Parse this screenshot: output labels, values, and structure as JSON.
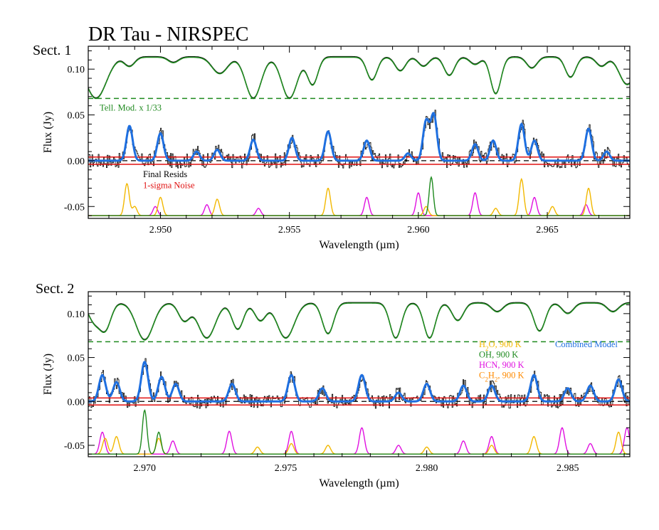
{
  "title": "DR Tau - NIRSPEC",
  "colors": {
    "telluric": "#1f8a1f",
    "combined": "#1e6fe0",
    "resids": "#000000",
    "noise": "#e01010",
    "h2o": "#f2b800",
    "oh": "#1f8a1f",
    "hcn": "#e010e0",
    "c2h2": "#ff8a00"
  },
  "chart_data": [
    {
      "type": "line",
      "panel_label": "Sect. 1",
      "xlabel": "Wavelength (µm)",
      "ylabel": "Flux (Jy)",
      "xlim": [
        2.9472,
        2.9682
      ],
      "ylim": [
        -0.063,
        0.125
      ],
      "xticks": [
        2.95,
        2.955,
        2.96,
        2.965
      ],
      "xtick_labels": [
        "2.950",
        "2.955",
        "2.960",
        "2.965"
      ],
      "yticks": [
        -0.05,
        0.0,
        0.05,
        0.1
      ],
      "ytick_labels": [
        "-0.05",
        "0.00",
        "0.05",
        "0.10"
      ],
      "telluric_level": 0.113,
      "telluric_dips": [
        {
          "x": 2.9475,
          "depth": 0.045,
          "w": 0.0004
        },
        {
          "x": 2.9488,
          "depth": 0.01,
          "w": 0.0002
        },
        {
          "x": 2.9505,
          "depth": 0.006,
          "w": 0.0002
        },
        {
          "x": 2.9523,
          "depth": 0.018,
          "w": 0.0003
        },
        {
          "x": 2.9536,
          "depth": 0.045,
          "w": 0.0003
        },
        {
          "x": 2.955,
          "depth": 0.045,
          "w": 0.0003
        },
        {
          "x": 2.9559,
          "depth": 0.03,
          "w": 0.0002
        },
        {
          "x": 2.9582,
          "depth": 0.025,
          "w": 0.0002
        },
        {
          "x": 2.9593,
          "depth": 0.015,
          "w": 0.0002
        },
        {
          "x": 2.9602,
          "depth": 0.01,
          "w": 0.0002
        },
        {
          "x": 2.9612,
          "depth": 0.02,
          "w": 0.0002
        },
        {
          "x": 2.9622,
          "depth": 0.008,
          "w": 0.0002
        },
        {
          "x": 2.963,
          "depth": 0.04,
          "w": 0.0002
        },
        {
          "x": 2.9644,
          "depth": 0.012,
          "w": 0.0002
        },
        {
          "x": 2.9659,
          "depth": 0.022,
          "w": 0.0002
        },
        {
          "x": 2.9671,
          "depth": 0.01,
          "w": 0.0002
        },
        {
          "x": 2.9681,
          "depth": 0.03,
          "w": 0.0003
        }
      ],
      "telluric_floor": 0.068,
      "telluric_note": "Tell. Mod. x 1/33",
      "combined_peaks": [
        {
          "x": 2.9488,
          "h": 0.038
        },
        {
          "x": 2.95,
          "h": 0.03
        },
        {
          "x": 2.9514,
          "h": 0.01
        },
        {
          "x": 2.9522,
          "h": 0.012
        },
        {
          "x": 2.9536,
          "h": 0.023
        },
        {
          "x": 2.9551,
          "h": 0.025
        },
        {
          "x": 2.9565,
          "h": 0.032
        },
        {
          "x": 2.958,
          "h": 0.022
        },
        {
          "x": 2.9596,
          "h": 0.008
        },
        {
          "x": 2.9603,
          "h": 0.043
        },
        {
          "x": 2.9606,
          "h": 0.05
        },
        {
          "x": 2.9622,
          "h": 0.018
        },
        {
          "x": 2.9629,
          "h": 0.022
        },
        {
          "x": 2.964,
          "h": 0.04
        },
        {
          "x": 2.9645,
          "h": 0.022
        },
        {
          "x": 2.9666,
          "h": 0.035
        },
        {
          "x": 2.9673,
          "h": 0.01
        }
      ],
      "resids_label": "Final Resids",
      "noise_label": "1-sigma Noise",
      "noise_sigma": 0.004,
      "species_base": -0.06,
      "h2o_peaks": [
        2.9487,
        2.949,
        2.95,
        2.9522,
        2.9565,
        2.9603,
        2.964,
        2.9666,
        2.963,
        2.9652
      ],
      "h2o_heights": [
        0.035,
        0.01,
        0.02,
        0.018,
        0.03,
        0.01,
        0.04,
        0.03,
        0.008,
        0.01
      ],
      "oh_peaks": [
        2.9605
      ],
      "oh_heights": [
        0.042
      ],
      "hcn_peaks": [
        2.9498,
        2.9518,
        2.9538,
        2.958,
        2.96,
        2.9622,
        2.9645,
        2.9665
      ],
      "hcn_heights": [
        0.01,
        0.012,
        0.008,
        0.02,
        0.025,
        0.025,
        0.02,
        0.012
      ]
    },
    {
      "type": "line",
      "panel_label": "Sect. 2",
      "xlabel": "Wavelength (µm)",
      "ylabel": "Flux (Jy)",
      "xlim": [
        2.968,
        2.9872
      ],
      "ylim": [
        -0.063,
        0.125
      ],
      "xticks": [
        2.97,
        2.975,
        2.98,
        2.985
      ],
      "xtick_labels": [
        "2.970",
        "2.975",
        "2.980",
        "2.985"
      ],
      "yticks": [
        -0.05,
        0.0,
        0.05,
        0.1
      ],
      "ytick_labels": [
        "-0.05",
        "0.00",
        "0.05",
        "0.10"
      ],
      "telluric_level": 0.112,
      "telluric_dips": [
        {
          "x": 2.9682,
          "depth": 0.02,
          "w": 0.0002
        },
        {
          "x": 2.9686,
          "depth": 0.03,
          "w": 0.0002
        },
        {
          "x": 2.97,
          "depth": 0.042,
          "w": 0.0003
        },
        {
          "x": 2.9714,
          "depth": 0.02,
          "w": 0.0002
        },
        {
          "x": 2.9722,
          "depth": 0.04,
          "w": 0.0003
        },
        {
          "x": 2.9733,
          "depth": 0.03,
          "w": 0.0002
        },
        {
          "x": 2.9741,
          "depth": 0.02,
          "w": 0.0002
        },
        {
          "x": 2.975,
          "depth": 0.04,
          "w": 0.0003
        },
        {
          "x": 2.9765,
          "depth": 0.035,
          "w": 0.0002
        },
        {
          "x": 2.9789,
          "depth": 0.04,
          "w": 0.0002
        },
        {
          "x": 2.9801,
          "depth": 0.04,
          "w": 0.0002
        },
        {
          "x": 2.9811,
          "depth": 0.02,
          "w": 0.0002
        },
        {
          "x": 2.9825,
          "depth": 0.01,
          "w": 0.0002
        },
        {
          "x": 2.984,
          "depth": 0.032,
          "w": 0.0002
        },
        {
          "x": 2.985,
          "depth": 0.012,
          "w": 0.0002
        },
        {
          "x": 2.9866,
          "depth": 0.01,
          "w": 0.0002
        }
      ],
      "telluric_floor": 0.068,
      "combined_peaks": [
        {
          "x": 2.9685,
          "h": 0.03
        },
        {
          "x": 2.969,
          "h": 0.022
        },
        {
          "x": 2.97,
          "h": 0.045
        },
        {
          "x": 2.9706,
          "h": 0.028
        },
        {
          "x": 2.9711,
          "h": 0.02
        },
        {
          "x": 2.9731,
          "h": 0.02
        },
        {
          "x": 2.9752,
          "h": 0.03
        },
        {
          "x": 2.9763,
          "h": 0.015
        },
        {
          "x": 2.9777,
          "h": 0.03
        },
        {
          "x": 2.979,
          "h": 0.01
        },
        {
          "x": 2.98,
          "h": 0.02
        },
        {
          "x": 2.9813,
          "h": 0.018
        },
        {
          "x": 2.9823,
          "h": 0.018
        },
        {
          "x": 2.9838,
          "h": 0.03
        },
        {
          "x": 2.985,
          "h": 0.015
        },
        {
          "x": 2.9858,
          "h": 0.018
        },
        {
          "x": 2.9868,
          "h": 0.025
        }
      ],
      "noise_sigma": 0.004,
      "species_base": -0.06,
      "legend": [
        {
          "label": "H2O, 900 K",
          "key": "h2o"
        },
        {
          "label": "OH, 900 K",
          "key": "oh"
        },
        {
          "label": "HCN, 900 K",
          "key": "hcn"
        },
        {
          "label": "C2H2, 900 K",
          "key": "c2h2"
        }
      ],
      "combined_label": "Combined Model",
      "h2o_peaks": [
        2.9686,
        2.969,
        2.9705,
        2.974,
        2.9752,
        2.9765,
        2.98,
        2.9823,
        2.9838,
        2.9868
      ],
      "h2o_heights": [
        0.018,
        0.02,
        0.018,
        0.008,
        0.012,
        0.01,
        0.008,
        0.01,
        0.02,
        0.025
      ],
      "oh_peaks": [
        2.97,
        2.9705
      ],
      "oh_heights": [
        0.05,
        0.025
      ],
      "hcn_peaks": [
        2.9685,
        2.971,
        2.973,
        2.9752,
        2.9777,
        2.979,
        2.9813,
        2.9823,
        2.9848,
        2.9858,
        2.9871
      ],
      "hcn_heights": [
        0.025,
        0.015,
        0.026,
        0.026,
        0.03,
        0.01,
        0.015,
        0.02,
        0.03,
        0.012,
        0.03
      ]
    }
  ]
}
